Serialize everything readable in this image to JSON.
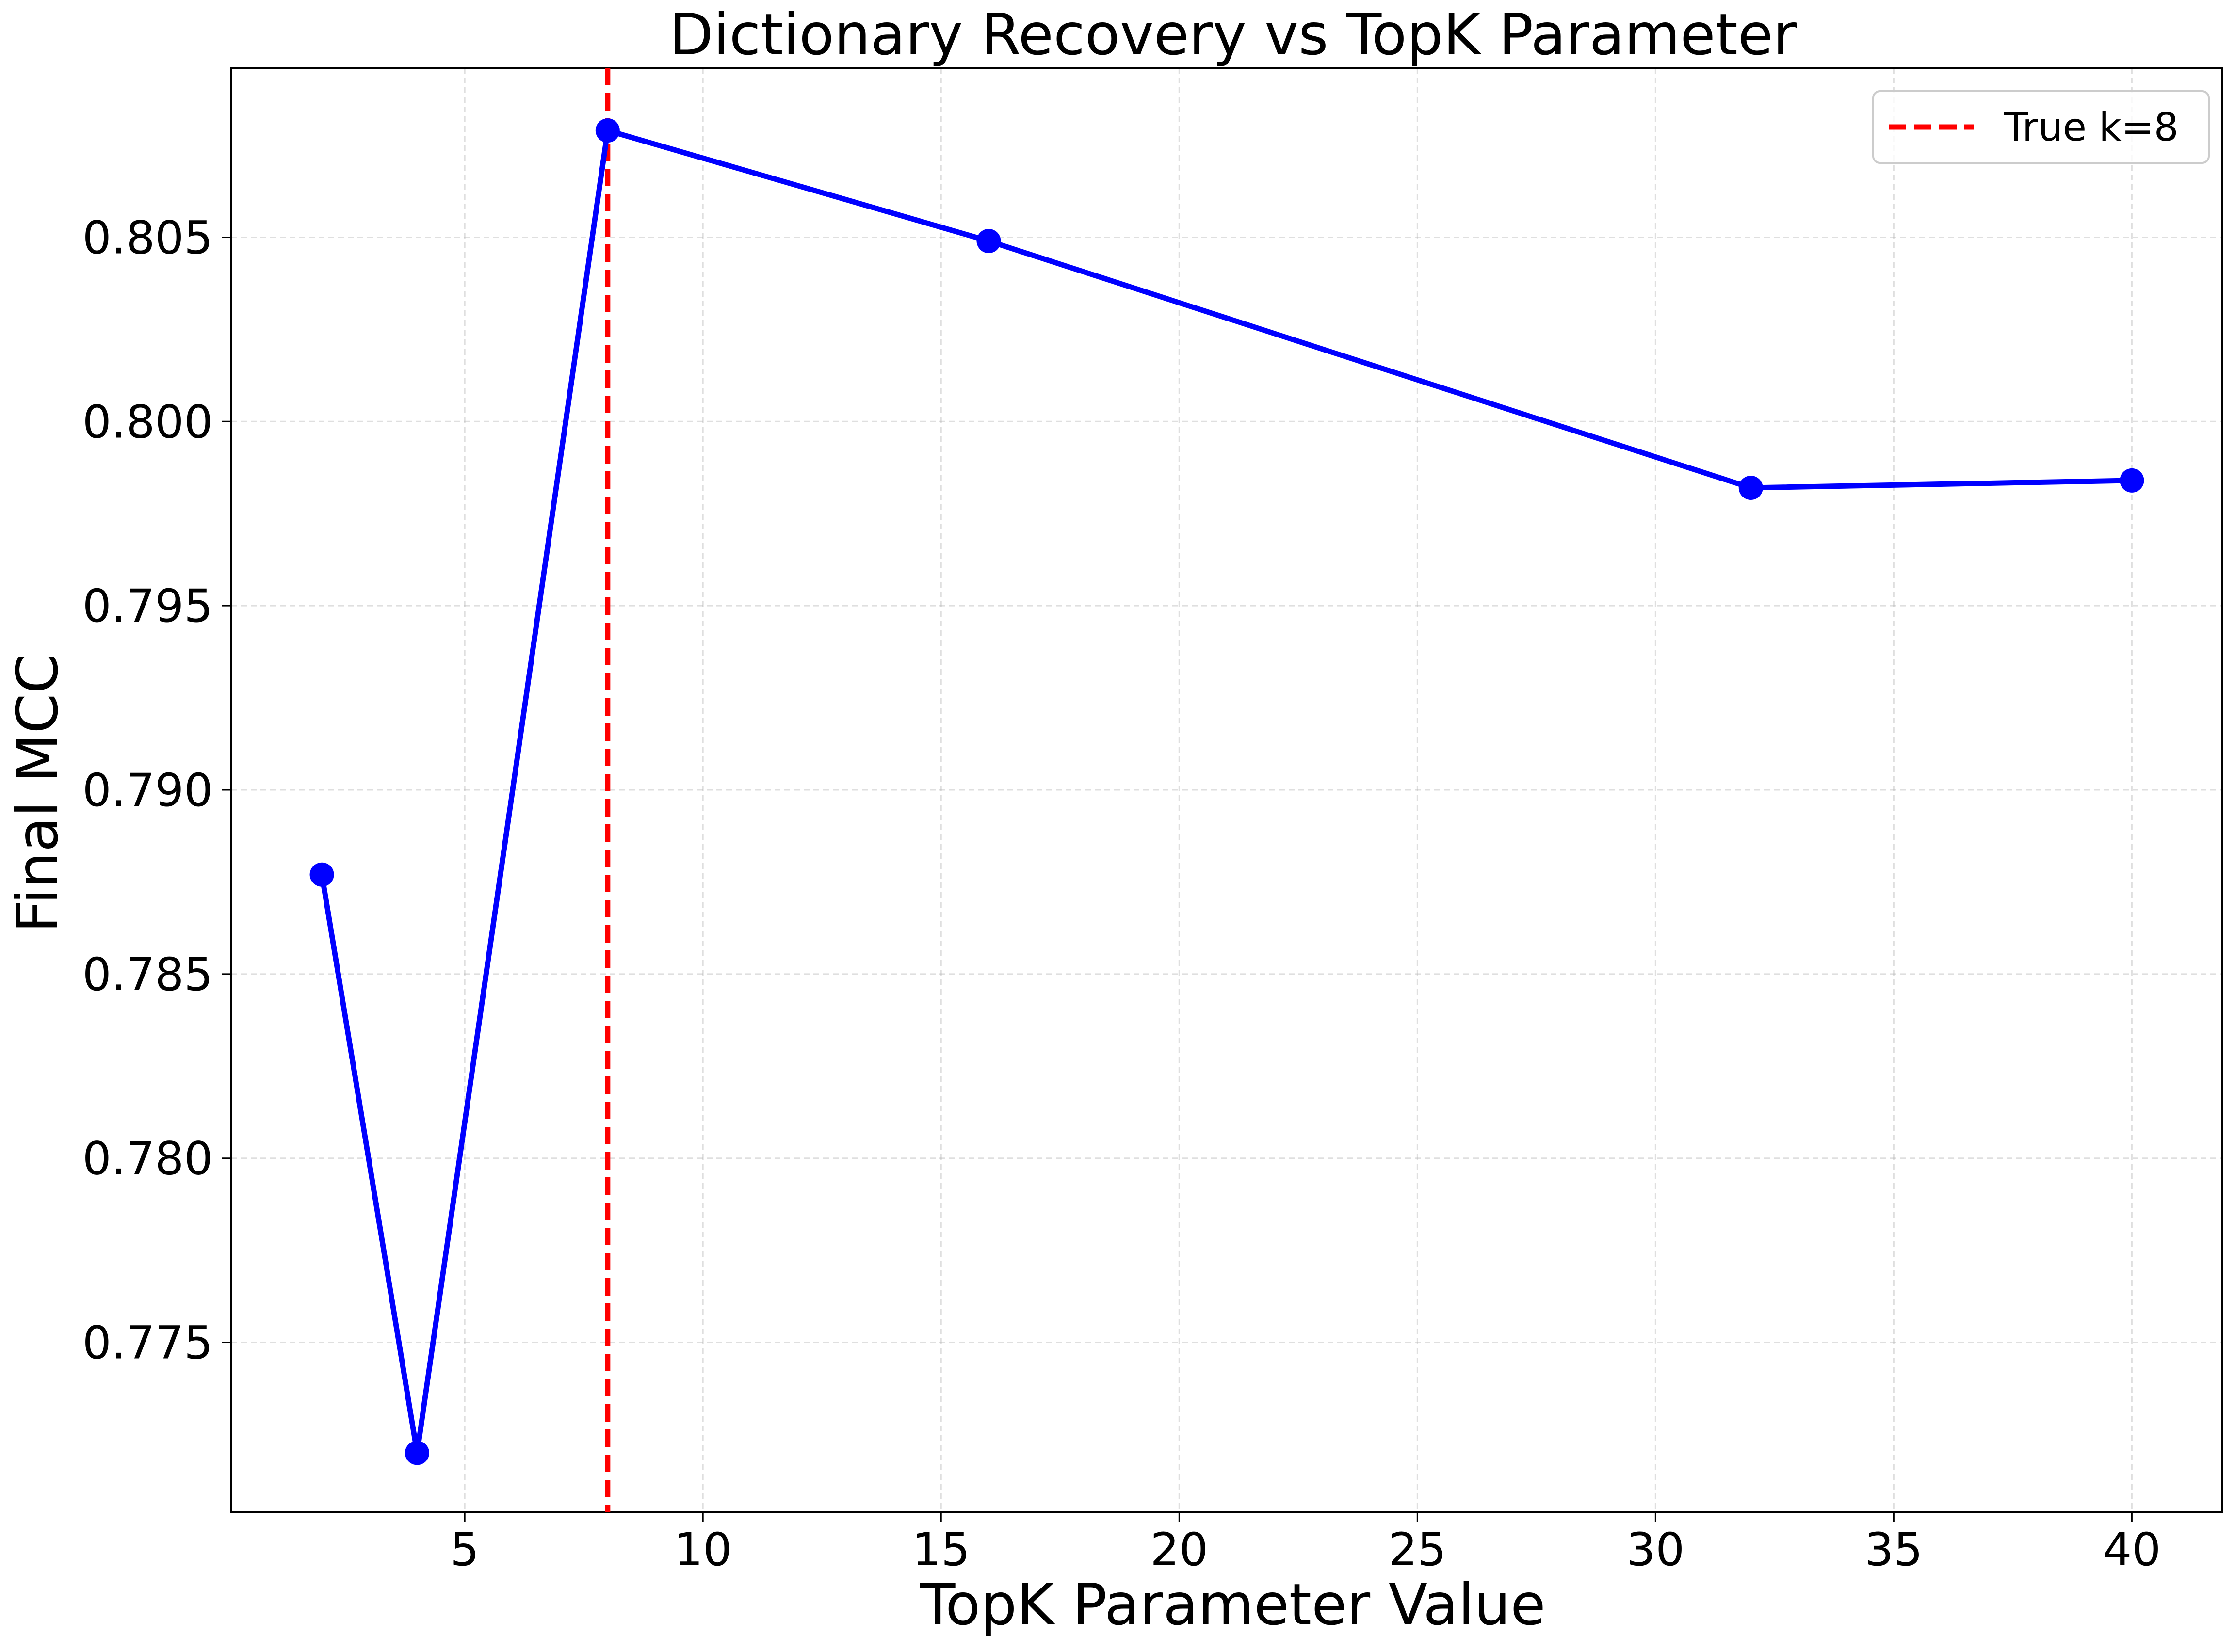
{
  "chart_data": {
    "type": "line",
    "title": "Dictionary Recovery vs TopK Parameter",
    "xlabel": "TopK Parameter Value",
    "ylabel": "Final MCC",
    "xlim": [
      0.1,
      41.9
    ],
    "ylim": [
      0.7704,
      0.8096
    ],
    "x_ticks": [
      5,
      10,
      15,
      20,
      25,
      30,
      35,
      40
    ],
    "x_tick_labels": [
      "5",
      "10",
      "15",
      "20",
      "25",
      "30",
      "35",
      "40"
    ],
    "y_ticks": [
      0.775,
      0.78,
      0.785,
      0.79,
      0.795,
      0.8,
      0.805
    ],
    "y_tick_labels": [
      "0.775",
      "0.780",
      "0.785",
      "0.790",
      "0.795",
      "0.800",
      "0.805"
    ],
    "grid": true,
    "series": [
      {
        "x": [
          2,
          4,
          8,
          16,
          32,
          40
        ],
        "y": [
          0.7877,
          0.772,
          0.8079,
          0.8049,
          0.7982,
          0.7984
        ],
        "color": "#0000ff",
        "marker": "circle"
      }
    ],
    "reference_lines": [
      {
        "orientation": "vertical",
        "x": 8,
        "label": "True k=8",
        "color": "#ff0000",
        "style": "dashed"
      }
    ],
    "legend": {
      "placement": "top-right",
      "entries": [
        "True k=8"
      ]
    }
  }
}
